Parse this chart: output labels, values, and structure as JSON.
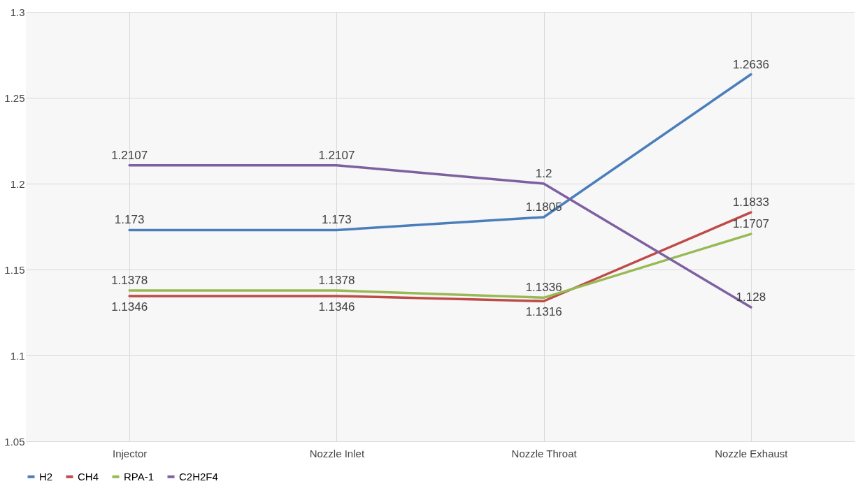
{
  "chart_data": {
    "type": "line",
    "categories": [
      "Injector",
      "Nozzle Inlet",
      "Nozzle Throat",
      "Nozzle Exhaust"
    ],
    "series": [
      {
        "name": "H2",
        "color": "#4a7ebb",
        "values": [
          1.173,
          1.173,
          1.1805,
          1.2636
        ]
      },
      {
        "name": "CH4",
        "color": "#be4b48",
        "values": [
          1.1346,
          1.1346,
          1.1316,
          1.1833
        ]
      },
      {
        "name": "RPA-1",
        "color": "#98b954",
        "values": [
          1.1378,
          1.1378,
          1.1336,
          1.1707
        ]
      },
      {
        "name": "C2H2F4",
        "color": "#7d60a0",
        "values": [
          1.2107,
          1.2107,
          1.2,
          1.128
        ]
      }
    ],
    "ylim": [
      1.05,
      1.3
    ],
    "yticks": [
      1.05,
      {
        "value": 1.1,
        "label": "1.1"
      },
      1.15,
      {
        "value": 1.2,
        "label": "1.2"
      },
      1.25,
      {
        "value": 1.3,
        "label": "1.3"
      }
    ],
    "grid": true,
    "legend": "bottom",
    "data_labels": true,
    "marker": "none",
    "line_style": "solid"
  }
}
